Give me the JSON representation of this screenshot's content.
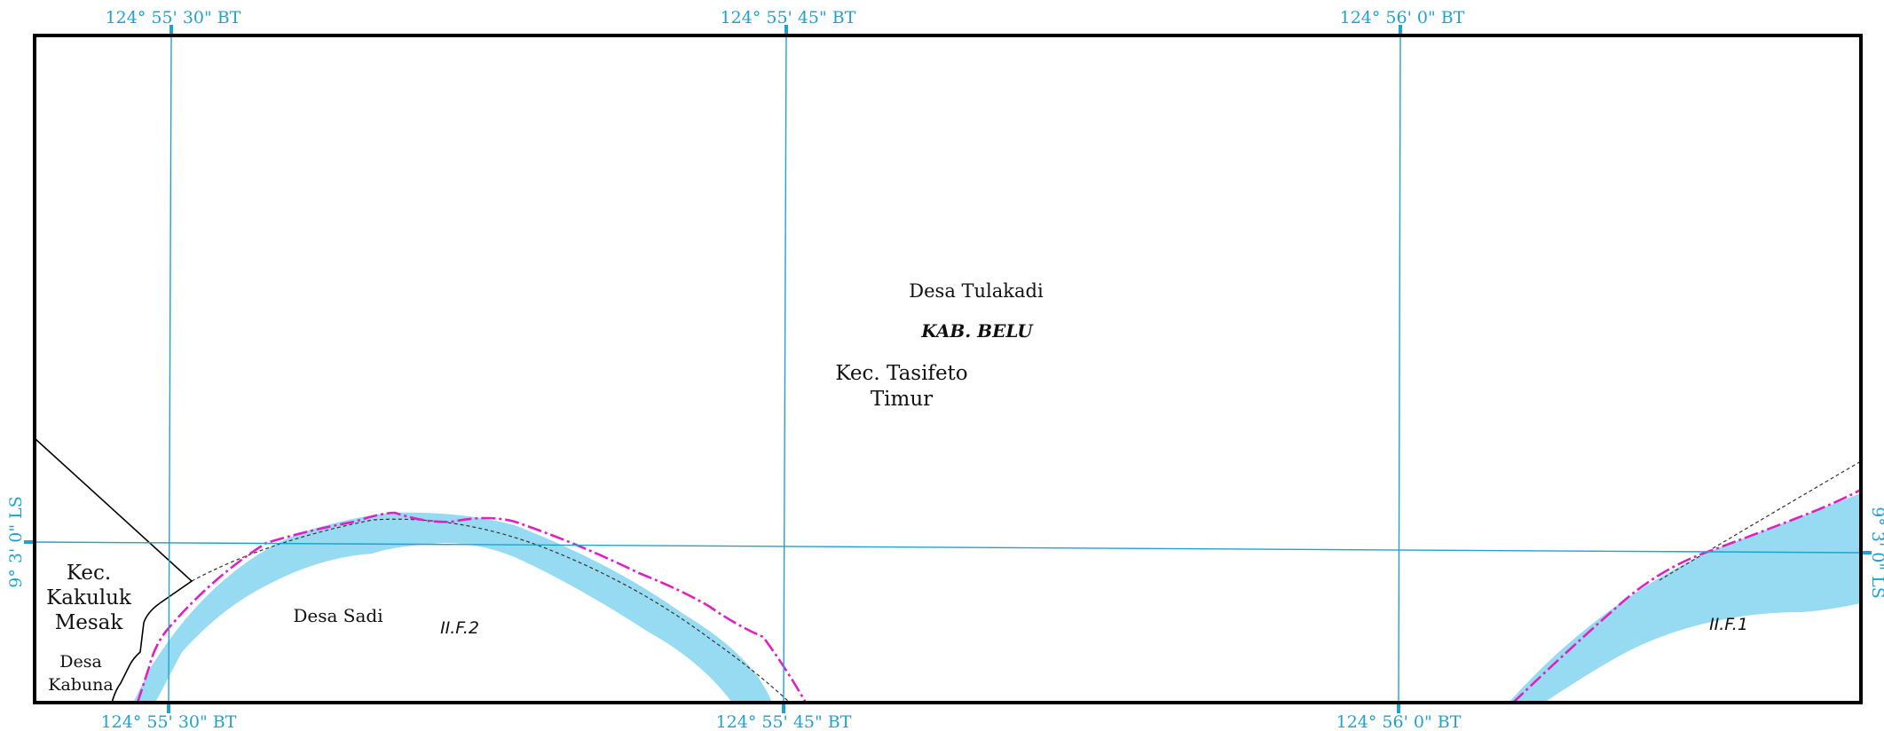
{
  "grid": {
    "longitudes_top": [
      "124° 55' 30\" BT",
      "124° 55' 45\" BT",
      "124° 56' 0\" BT"
    ],
    "longitudes_bottom": [
      "124° 55' 30\" BT",
      "124° 55' 45\" BT",
      "124° 56' 0\" BT"
    ],
    "latitude": "9° 3' 0\" LS"
  },
  "labels": {
    "desa_tulakadi": "Desa Tulakadi",
    "kab_belu": "KAB. BELU",
    "kec_tasifeto_1": "Kec. Tasifeto",
    "kec_tasifeto_2": "Timur",
    "kec_kakuluk_1": "Kec.",
    "kec_kakuluk_2": "Kakuluk",
    "kec_kakuluk_3": "Mesak",
    "desa_kabuna_1": "Desa",
    "desa_kabuna_2": "Kabuna",
    "desa_sadi": "Desa Sadi",
    "segment_2": "II.F.2",
    "segment_1": "II.F.1"
  },
  "colors": {
    "grid": "#1ea3d0",
    "water": "#97dbf2",
    "boundary_line": "#e020c0",
    "frame": "#000000"
  }
}
